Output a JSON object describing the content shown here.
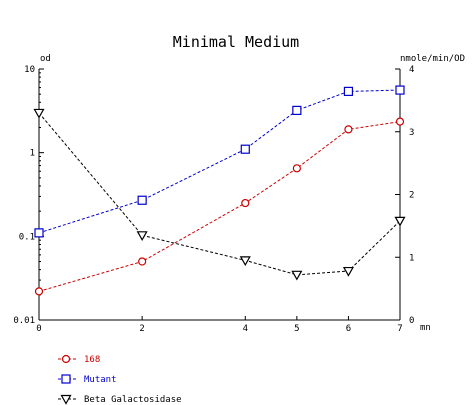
{
  "chart_data": {
    "type": "line",
    "title": "Minimal Medium",
    "x_unit_label": "mn",
    "left_axis": {
      "label": "od",
      "scale": "log",
      "range": [
        0.01,
        10
      ],
      "ticks": [
        {
          "value": 10,
          "label": "10"
        },
        {
          "value": 1,
          "label": "1"
        },
        {
          "value": 0.1,
          "label": "0.1"
        },
        {
          "value": 0.01,
          "label": "0.01"
        }
      ]
    },
    "right_axis": {
      "label": "nmole/min/OD",
      "scale": "linear",
      "range": [
        0,
        4
      ],
      "ticks": [
        {
          "value": 4,
          "label": "4"
        },
        {
          "value": 3,
          "label": "3"
        },
        {
          "value": 2,
          "label": "2"
        },
        {
          "value": 1,
          "label": "1"
        },
        {
          "value": 0,
          "label": "0"
        }
      ]
    },
    "x_axis": {
      "range": [
        0,
        7
      ],
      "ticks": [
        {
          "value": 0,
          "label": "0"
        },
        {
          "value": 2,
          "label": "2"
        },
        {
          "value": 4,
          "label": "4"
        },
        {
          "value": 5,
          "label": "5"
        },
        {
          "value": 6,
          "label": "6"
        },
        {
          "value": 7,
          "label": "7"
        }
      ]
    },
    "x": [
      0,
      2,
      4,
      5,
      6,
      7
    ],
    "series": [
      {
        "name": "168",
        "axis": "left",
        "marker": "circle",
        "color": "#cc0000",
        "values": [
          0.022,
          0.05,
          0.25,
          0.65,
          1.9,
          2.35
        ]
      },
      {
        "name": "Mutant",
        "axis": "left",
        "marker": "square",
        "color": "#0000cc",
        "values": [
          0.11,
          0.27,
          1.1,
          3.2,
          5.4,
          5.6
        ]
      },
      {
        "name": "Beta Galactosidase",
        "axis": "right",
        "marker": "triangle-down",
        "color": "#000000",
        "values": [
          3.3,
          1.35,
          0.95,
          0.72,
          0.78,
          1.58
        ]
      }
    ],
    "grid": false,
    "legend_position": "bottom-left"
  }
}
